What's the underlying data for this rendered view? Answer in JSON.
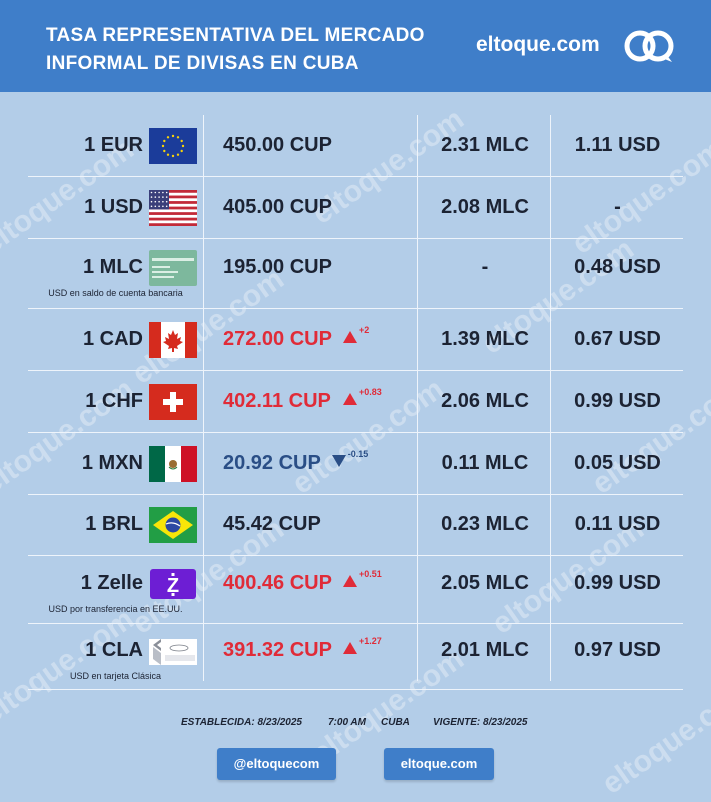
{
  "header": {
    "title": "TASA REPRESENTATIVA DEL MERCADO INFORMAL DE DIVISAS EN CUBA",
    "brand": "eltoque.com"
  },
  "watermark": "eltoque.com",
  "rates": [
    {
      "currency": "1 EUR",
      "flag": "eu-flag",
      "cup": "450.00 CUP",
      "trend": "",
      "change": "",
      "mlc": "2.31 MLC",
      "usd": "1.11 USD",
      "note": ""
    },
    {
      "currency": "1 USD",
      "flag": "us-flag",
      "cup": "405.00 CUP",
      "trend": "",
      "change": "",
      "mlc": "2.08 MLC",
      "usd": "-",
      "note": ""
    },
    {
      "currency": "1 MLC",
      "flag": "mlc-card",
      "cup": "195.00 CUP",
      "trend": "",
      "change": "",
      "mlc": "-",
      "usd": "0.48 USD",
      "note": "USD en saldo de cuenta bancaria"
    },
    {
      "currency": "1 CAD",
      "flag": "canada-flag",
      "cup": "272.00 CUP",
      "trend": "up",
      "change": "+2",
      "mlc": "1.39 MLC",
      "usd": "0.67 USD",
      "note": ""
    },
    {
      "currency": "1 CHF",
      "flag": "swiss-flag",
      "cup": "402.11 CUP",
      "trend": "up",
      "change": "+0.83",
      "mlc": "2.06 MLC",
      "usd": "0.99 USD",
      "note": ""
    },
    {
      "currency": "1 MXN",
      "flag": "mexico-flag",
      "cup": "20.92 CUP",
      "trend": "down",
      "change": "-0.15",
      "mlc": "0.11 MLC",
      "usd": "0.05 USD",
      "note": ""
    },
    {
      "currency": "1 BRL",
      "flag": "brazil-flag",
      "cup": "45.42 CUP",
      "trend": "",
      "change": "",
      "mlc": "0.23 MLC",
      "usd": "0.11 USD",
      "note": ""
    },
    {
      "currency": "1 Zelle",
      "flag": "zelle-logo",
      "cup": "400.46 CUP",
      "trend": "up",
      "change": "+0.51",
      "mlc": "2.05 MLC",
      "usd": "0.99 USD",
      "note": "USD por transferencia en EE.UU."
    },
    {
      "currency": "1 CLA",
      "flag": "clasica-card",
      "cup": "391.32 CUP",
      "trend": "up",
      "change": "+1.27",
      "mlc": "2.01 MLC",
      "usd": "0.97 USD",
      "note": "USD en tarjeta Clásica"
    }
  ],
  "footer": {
    "established": "ESTABLECIDA: 8/23/2025",
    "time": "7:00 AM",
    "place": "CUBA",
    "valid": "VIGENTE: 8/23/2025"
  },
  "buttons": {
    "social": "@eltoquecom",
    "site": "eltoque.com"
  },
  "colors": {
    "header": "#3f7ec9",
    "background": "#b3cde8",
    "up": "#e02b38",
    "down": "#2a4e86"
  }
}
